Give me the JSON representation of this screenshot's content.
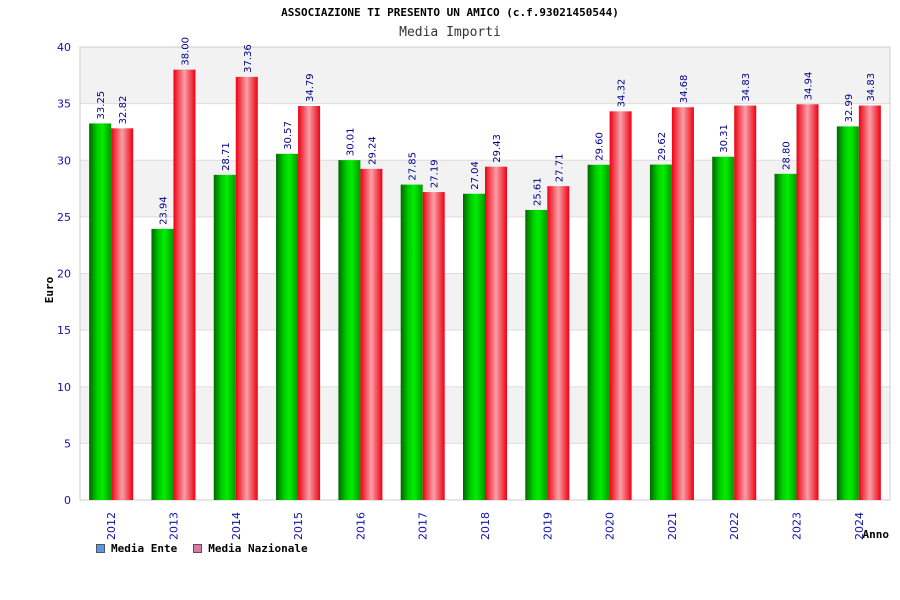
{
  "chart_data": {
    "type": "bar",
    "title": "ASSOCIAZIONE TI PRESENTO UN AMICO (c.f.93021450544)",
    "subtitle": "Media Importi",
    "ylabel": "Euro",
    "xlabel": "Anno",
    "ylim": [
      0,
      40
    ],
    "yticks": [
      0,
      5,
      10,
      15,
      20,
      25,
      30,
      35,
      40
    ],
    "categories": [
      "2012",
      "2013",
      "2014",
      "2015",
      "2016",
      "2017",
      "2018",
      "2019",
      "2020",
      "2021",
      "2022",
      "2023",
      "2024"
    ],
    "series": [
      {
        "name": "Media Ente",
        "color": "#00bb00",
        "values": [
          33.25,
          23.94,
          28.71,
          30.57,
          30.01,
          27.85,
          27.04,
          25.61,
          29.6,
          29.62,
          30.31,
          28.8,
          32.99
        ],
        "labels": [
          "33.25",
          "23.94",
          "28.71",
          "30.57",
          "30.01",
          "27.85",
          "27.04",
          "25.61",
          "29.60",
          "29.62",
          "30.31",
          "28.80",
          "32.99"
        ]
      },
      {
        "name": "Media Nazionale",
        "color": "#ee1122",
        "values": [
          32.82,
          38.0,
          37.36,
          34.79,
          29.24,
          27.19,
          29.43,
          27.71,
          34.32,
          34.68,
          34.83,
          34.94,
          34.83
        ],
        "labels": [
          "32.82",
          "38.00",
          "37.36",
          "34.79",
          "29.24",
          "27.19",
          "29.43",
          "27.71",
          "34.32",
          "34.68",
          "34.83",
          "34.94",
          "34.83"
        ]
      }
    ],
    "legend": [
      {
        "label": "Media Ente",
        "color": "#5599ee"
      },
      {
        "label": "Media Nazionale",
        "color": "#dd77aa"
      }
    ],
    "legend_position": "bottom-left",
    "grid": true
  }
}
